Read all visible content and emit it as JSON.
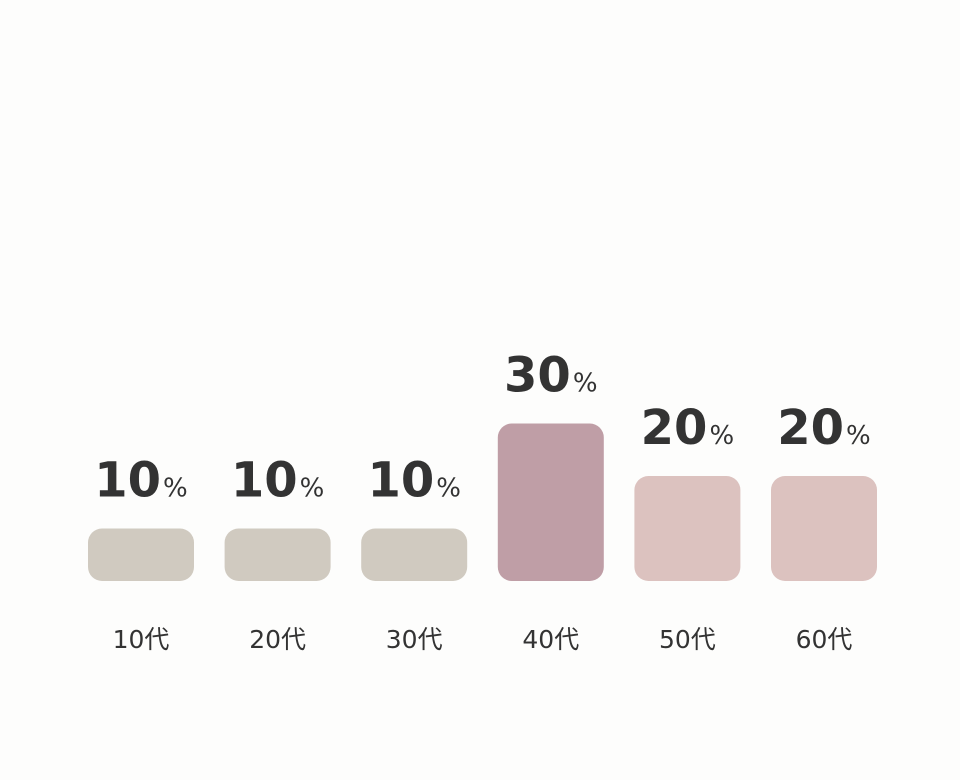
{
  "chart_data": {
    "type": "bar",
    "categories": [
      "10代",
      "20代",
      "30代",
      "40代",
      "50代",
      "60代"
    ],
    "values": [
      10,
      10,
      10,
      30,
      20,
      20
    ],
    "value_labels": [
      "10%",
      "10%",
      "10%",
      "30%",
      "20%",
      "20%"
    ],
    "colors": [
      "#d0cac0",
      "#d0cac0",
      "#d0cac0",
      "#bf9ea6",
      "#dcc2bf",
      "#dcc2bf"
    ]
  }
}
